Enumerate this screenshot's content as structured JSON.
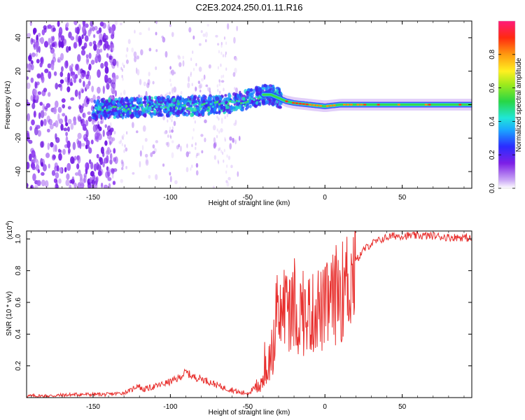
{
  "title": "C2E3.2024.250.01.11.R16",
  "colors": {
    "axis": "#000000",
    "snr_line": "#e8302e",
    "background": "#ffffff"
  },
  "chart_data": [
    {
      "type": "heatmap",
      "name": "spectrogram",
      "xlabel": "Height of straight line (km)",
      "ylabel": "Frequency (Hz)",
      "xlim": [
        -193,
        95
      ],
      "ylim": [
        -50,
        50
      ],
      "x_ticks": [
        -150,
        -100,
        -50,
        0,
        50
      ],
      "y_ticks": [
        -40,
        -20,
        0,
        20,
        40
      ],
      "x_tick_labels": [
        "-150",
        "-100",
        "-50",
        "0",
        "50"
      ],
      "y_tick_labels": [
        "-40",
        "-20",
        "0",
        "20",
        "40"
      ],
      "ridge_frequency_hz": [
        [
          -150,
          -3
        ],
        [
          -130,
          -2
        ],
        [
          -110,
          -1
        ],
        [
          -90,
          -1
        ],
        [
          -70,
          0
        ],
        [
          -60,
          1
        ],
        [
          -50,
          3
        ],
        [
          -40,
          6
        ],
        [
          -35,
          6
        ],
        [
          -30,
          4
        ],
        [
          -25,
          2
        ],
        [
          -20,
          1
        ],
        [
          -10,
          0
        ],
        [
          0,
          -1
        ],
        [
          10,
          0
        ],
        [
          30,
          0
        ],
        [
          60,
          0
        ],
        [
          95,
          0
        ]
      ],
      "colorbar": {
        "label": "Normalized spectral amplitude",
        "range": [
          0.0,
          1.0
        ],
        "ticks": [
          0.0,
          0.2,
          0.4,
          0.6,
          0.8
        ],
        "tick_labels": [
          "0.0",
          "0.2",
          "0.4",
          "0.6",
          "0.8"
        ]
      }
    },
    {
      "type": "line",
      "name": "snr",
      "xlabel": "Height of straight line (km)",
      "ylabel": "SNR (10 * v/v)",
      "scale_note": "(x10",
      "scale_exp": "4",
      "scale_close": ")",
      "xlim": [
        -193,
        95
      ],
      "ylim": [
        0,
        1.05
      ],
      "x_ticks": [
        -150,
        -100,
        -50,
        0,
        50
      ],
      "y_ticks": [
        0.2,
        0.4,
        0.6,
        0.8,
        1.0
      ],
      "x_tick_labels": [
        "-150",
        "-100",
        "-50",
        "0",
        "50"
      ],
      "y_tick_labels": [
        "0.2",
        "0.4",
        "0.6",
        "0.8",
        "1.0"
      ],
      "series": [
        {
          "name": "SNR",
          "x": [
            -193,
            -180,
            -160,
            -140,
            -130,
            -125,
            -121,
            -118,
            -110,
            -100,
            -95,
            -90,
            -85,
            -80,
            -75,
            -70,
            -65,
            -60,
            -55,
            -50,
            -45,
            -40,
            -36,
            -32,
            -28,
            -25,
            -22,
            -20,
            -18,
            -15,
            -12,
            -10,
            -8,
            -5,
            -2,
            0,
            3,
            6,
            9,
            12,
            15,
            18,
            20,
            25,
            30,
            35,
            40,
            45,
            50,
            60,
            70,
            80,
            90,
            95
          ],
          "y": [
            0.01,
            0.01,
            0.02,
            0.02,
            0.03,
            0.05,
            0.08,
            0.05,
            0.07,
            0.1,
            0.12,
            0.16,
            0.13,
            0.12,
            0.1,
            0.08,
            0.06,
            0.05,
            0.03,
            0.03,
            0.06,
            0.12,
            0.22,
            0.38,
            0.55,
            0.6,
            0.52,
            0.56,
            0.5,
            0.55,
            0.48,
            0.55,
            0.52,
            0.58,
            0.54,
            0.56,
            0.6,
            0.62,
            0.7,
            0.66,
            0.75,
            0.78,
            0.86,
            0.93,
            0.97,
            0.99,
            1.01,
            1.02,
            1.02,
            1.02,
            1.02,
            1.01,
            1.01,
            1.0
          ]
        }
      ]
    }
  ]
}
